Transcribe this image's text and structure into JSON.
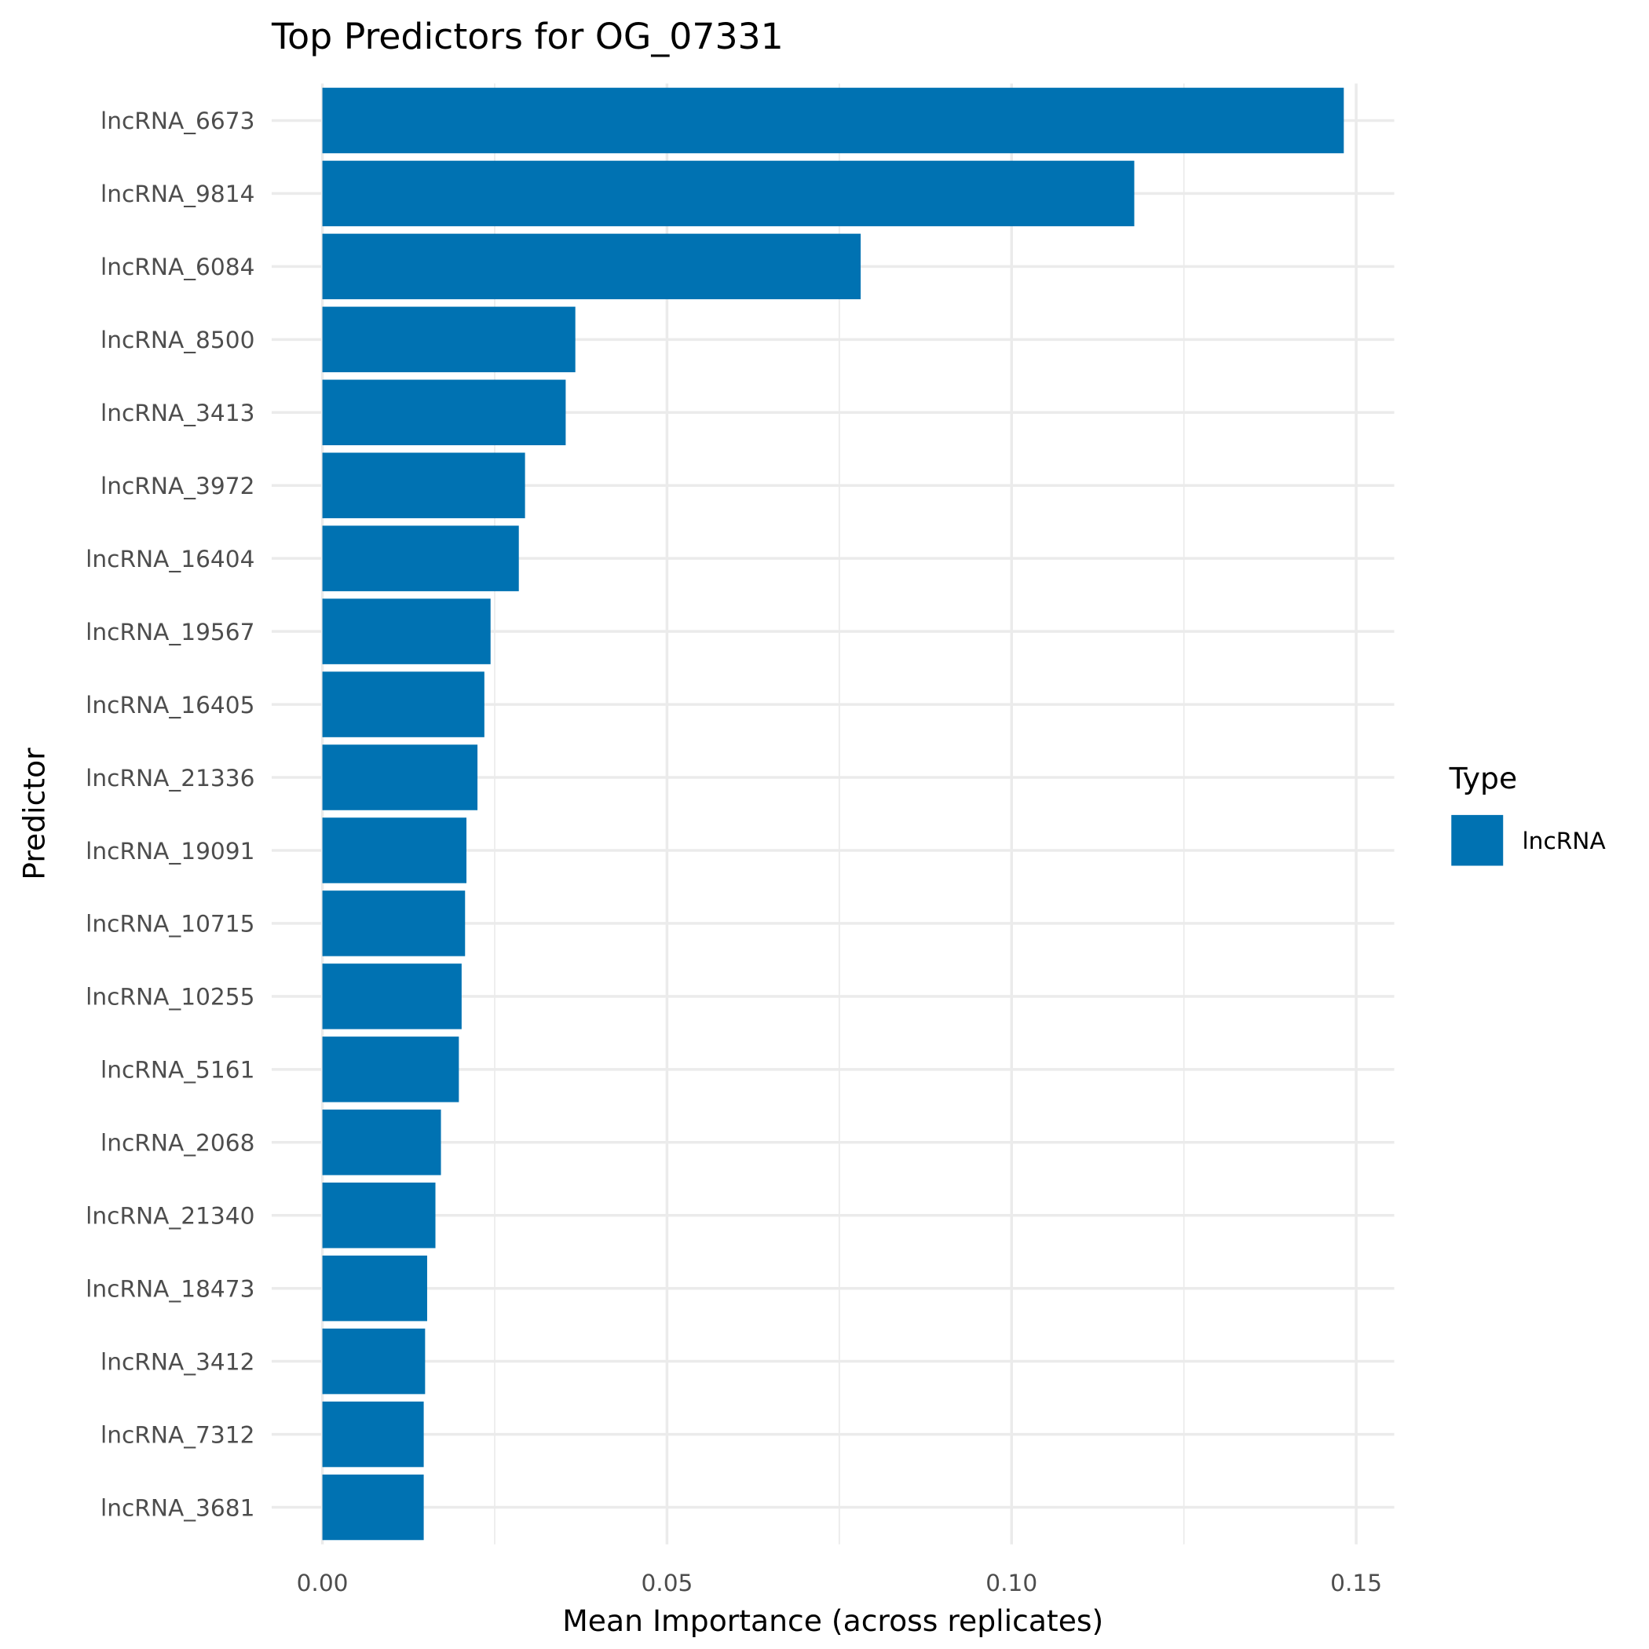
{
  "chart_data": {
    "type": "bar",
    "orientation": "horizontal",
    "title": "Top Predictors for OG_07331",
    "xlabel": "Mean Importance (across replicates)",
    "ylabel": "Predictor",
    "xlim": [
      0,
      0.155
    ],
    "xticks": [
      "0.00",
      "0.05",
      "0.10",
      "0.15"
    ],
    "xtick_values": [
      0,
      0.05,
      0.1,
      0.15
    ],
    "grid": true,
    "legend": {
      "title": "Type",
      "position": "right",
      "entries": [
        {
          "label": "lncRNA",
          "color": "#0072B2"
        }
      ]
    },
    "categories": [
      "lncRNA_6673",
      "lncRNA_9814",
      "lncRNA_6084",
      "lncRNA_8500",
      "lncRNA_3413",
      "lncRNA_3972",
      "lncRNA_16404",
      "lncRNA_19567",
      "lncRNA_16405",
      "lncRNA_21336",
      "lncRNA_19091",
      "lncRNA_10715",
      "lncRNA_10255",
      "lncRNA_5161",
      "lncRNA_2068",
      "lncRNA_21340",
      "lncRNA_18473",
      "lncRNA_3412",
      "lncRNA_7312",
      "lncRNA_3681"
    ],
    "values": [
      0.1482,
      0.1178,
      0.0781,
      0.0367,
      0.0353,
      0.0294,
      0.0285,
      0.0244,
      0.0235,
      0.0225,
      0.0209,
      0.0207,
      0.0202,
      0.0198,
      0.0172,
      0.0164,
      0.0152,
      0.0149,
      0.0147,
      0.0147
    ],
    "bar_color": "#0072B2"
  }
}
